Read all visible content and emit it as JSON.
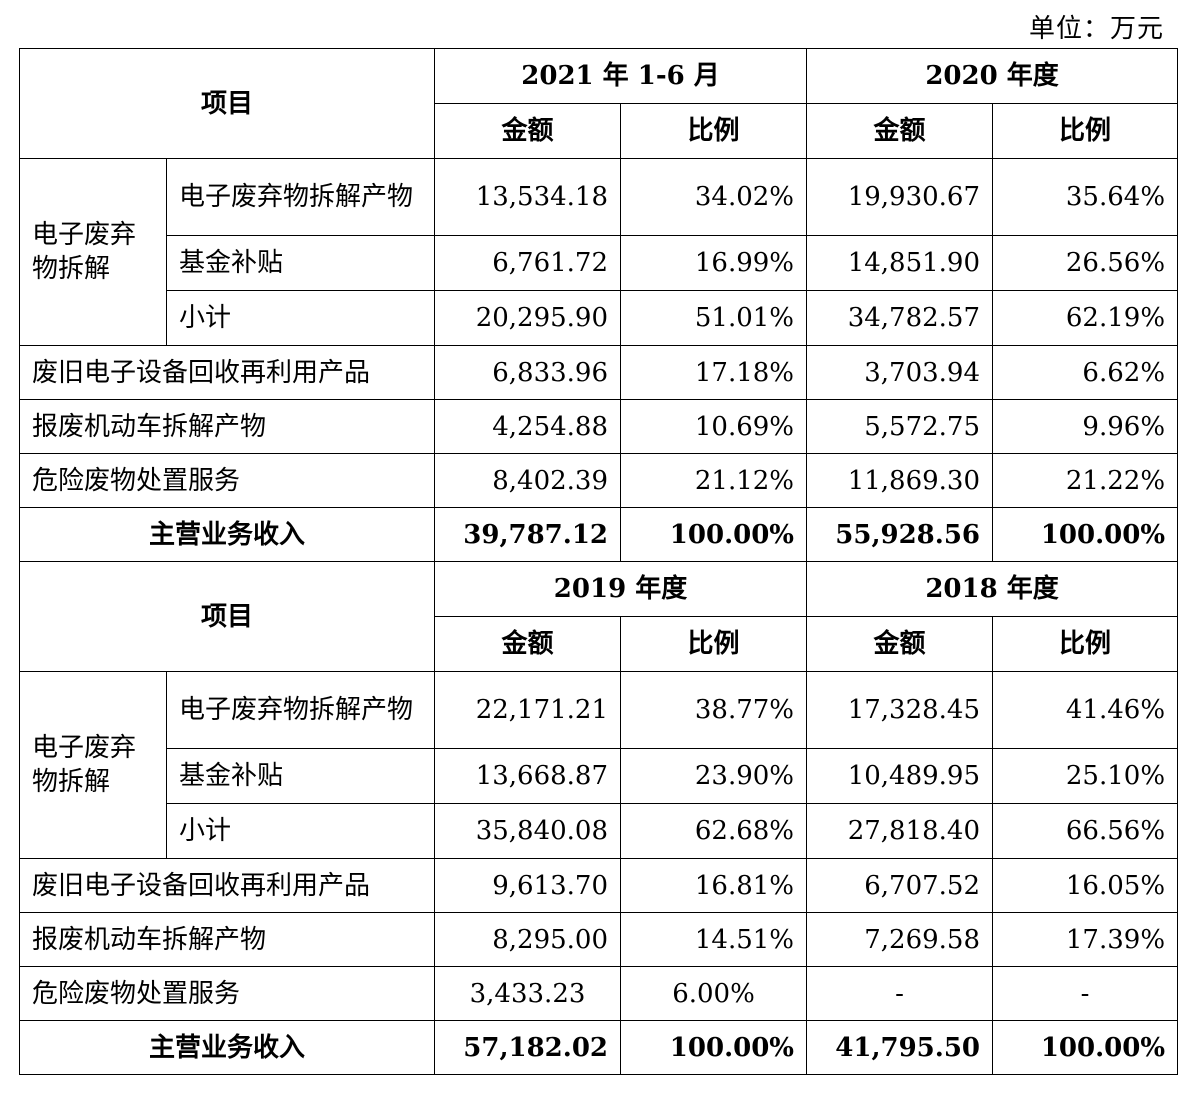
{
  "unit_label": "单位：万元",
  "headers": {
    "item": "项目",
    "amount": "金额",
    "ratio": "比例"
  },
  "group_label": "电子废弃物拆解",
  "sections": [
    {
      "periods": [
        "2021 年 1-6 月",
        "2020 年度"
      ],
      "ewaste": [
        {
          "label": "电子废弃物拆解产物",
          "values": [
            "13,534.18",
            "34.02%",
            "19,930.67",
            "35.64%"
          ]
        },
        {
          "label": "基金补贴",
          "values": [
            "6,761.72",
            "16.99%",
            "14,851.90",
            "26.56%"
          ]
        },
        {
          "label": "小计",
          "values": [
            "20,295.90",
            "51.01%",
            "34,782.57",
            "62.19%"
          ]
        }
      ],
      "others": [
        {
          "label": "废旧电子设备回收再利用产品",
          "values": [
            "6,833.96",
            "17.18%",
            "3,703.94",
            "6.62%"
          ]
        },
        {
          "label": "报废机动车拆解产物",
          "values": [
            "4,254.88",
            "10.69%",
            "5,572.75",
            "9.96%"
          ]
        },
        {
          "label": "危险废物处置服务",
          "values": [
            "8,402.39",
            "21.12%",
            "11,869.30",
            "21.22%"
          ]
        }
      ],
      "total": {
        "label": "主营业务收入",
        "values": [
          "39,787.12",
          "100.00%",
          "55,928.56",
          "100.00%"
        ]
      }
    },
    {
      "periods": [
        "2019 年度",
        "2018 年度"
      ],
      "ewaste": [
        {
          "label": "电子废弃物拆解产物",
          "values": [
            "22,171.21",
            "38.77%",
            "17,328.45",
            "41.46%"
          ]
        },
        {
          "label": "基金补贴",
          "values": [
            "13,668.87",
            "23.90%",
            "10,489.95",
            "25.10%"
          ]
        },
        {
          "label": "小计",
          "values": [
            "35,840.08",
            "62.68%",
            "27,818.40",
            "66.56%"
          ]
        }
      ],
      "others": [
        {
          "label": "废旧电子设备回收再利用产品",
          "values": [
            "9,613.70",
            "16.81%",
            "6,707.52",
            "16.05%"
          ]
        },
        {
          "label": "报废机动车拆解产物",
          "values": [
            "8,295.00",
            "14.51%",
            "7,269.58",
            "17.39%"
          ]
        },
        {
          "label": "危险废物处置服务",
          "values": [
            "3,433.23",
            "6.00%",
            "-",
            "-"
          ]
        }
      ],
      "total": {
        "label": "主营业务收入",
        "values": [
          "57,182.02",
          "100.00%",
          "41,795.50",
          "100.00%"
        ]
      }
    }
  ]
}
